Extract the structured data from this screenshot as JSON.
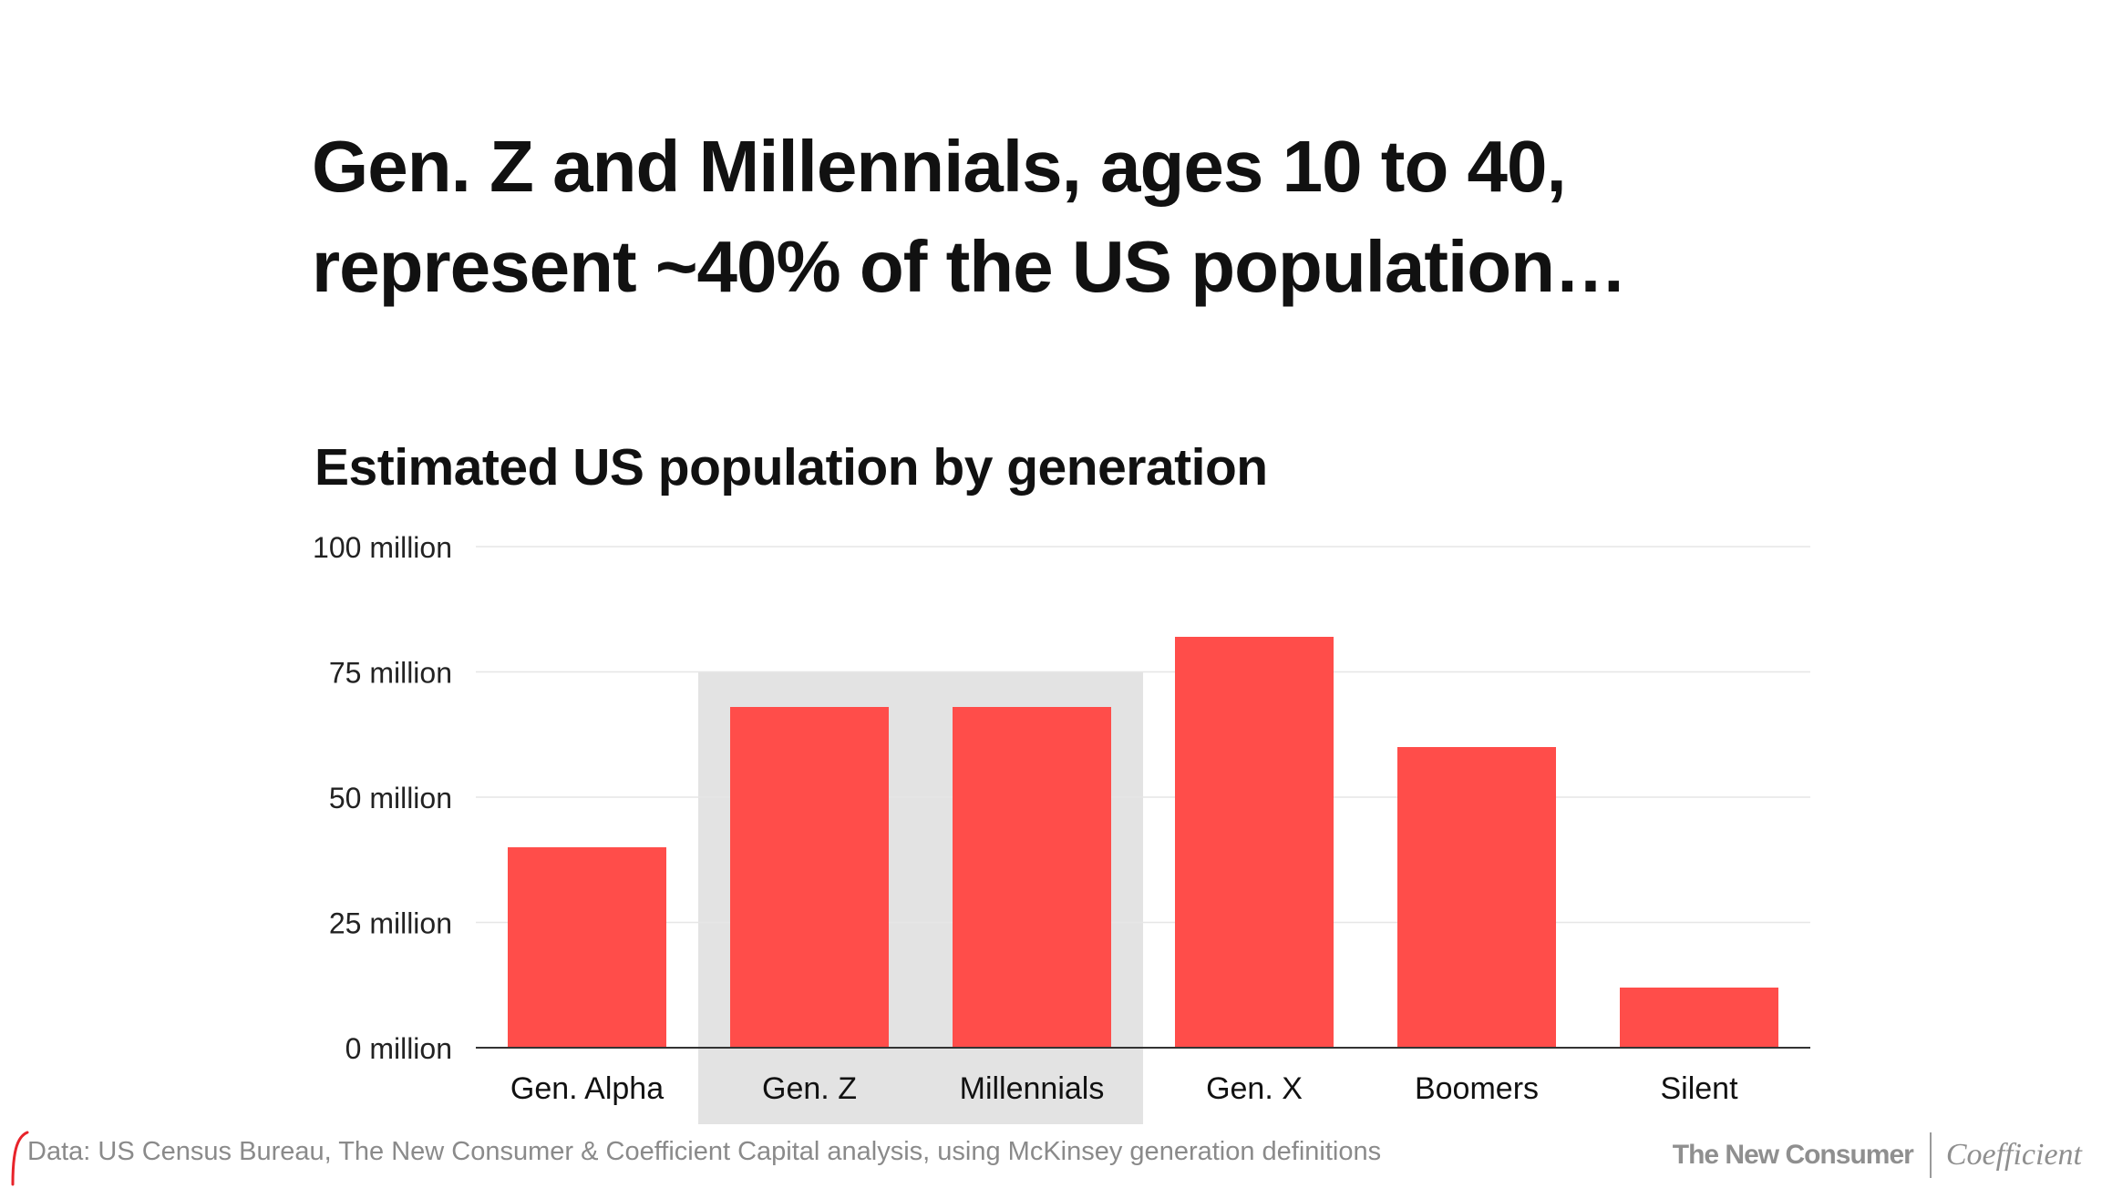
{
  "headline": {
    "line1": "Gen. Z and Millennials, ages 10 to 40,",
    "line2": "represent ~40% of the US population…"
  },
  "chart_data": {
    "type": "bar",
    "title": "Estimated US population by generation",
    "xlabel": "",
    "ylabel": "",
    "categories": [
      "Gen. Alpha",
      "Gen. Z",
      "Millennials",
      "Gen. X",
      "Boomers",
      "Silent"
    ],
    "values": [
      40,
      68,
      68,
      82,
      60,
      12
    ],
    "unit": "million",
    "ylim": [
      0,
      100
    ],
    "yticks": [
      0,
      25,
      50,
      75,
      100
    ],
    "ytick_labels": [
      "0 million",
      "25 million",
      "50 million",
      "75 million",
      "100 million"
    ],
    "grid": true,
    "highlighted_categories": [
      "Gen. Z",
      "Millennials"
    ],
    "bar_color": "#FF4D4A",
    "highlight_color": "#E3E3E3",
    "grid_color": "#E6E6E6",
    "axis_color": "#333333"
  },
  "footer": {
    "source": "Data: US Census Bureau, The New Consumer & Coefficient Capital analysis, using McKinsey generation definitions",
    "brand_primary": "The New Consumer",
    "brand_secondary": "Coefficient"
  }
}
